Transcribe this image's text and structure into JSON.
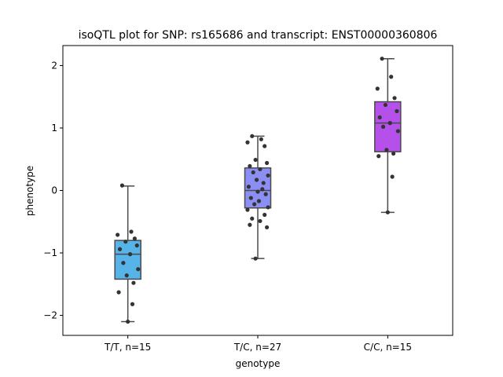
{
  "chart_data": {
    "type": "box",
    "title": "isoQTL plot for SNP: rs165686 and transcript: ENST00000360806",
    "xlabel": "genotype",
    "ylabel": "phenotype",
    "ylim": [
      -2.32,
      2.32
    ],
    "yticks": [
      -2,
      -1,
      0,
      1,
      2
    ],
    "ytick_labels": [
      "−2",
      "−1",
      "0",
      "1",
      "2"
    ],
    "grid": false,
    "categories": [
      "T/T, n=15",
      "T/C, n=27",
      "C/C, n=15"
    ],
    "colors": [
      "#56b4e9",
      "#8b8ef2",
      "#b550ea"
    ],
    "boxes": [
      {
        "category": "T/T, n=15",
        "whisker_low": -2.1,
        "q1": -1.42,
        "median": -1.02,
        "q3": -0.8,
        "whisker_high": 0.07
      },
      {
        "category": "T/C, n=27",
        "whisker_low": -1.09,
        "q1": -0.28,
        "median": 0.0,
        "q3": 0.36,
        "whisker_high": 0.87
      },
      {
        "category": "C/C, n=15",
        "whisker_low": -0.35,
        "q1": 0.62,
        "median": 1.08,
        "q3": 1.42,
        "whisker_high": 2.11
      }
    ],
    "points": [
      [
        0.08,
        -0.66,
        -0.71,
        -0.77,
        -0.82,
        -0.88,
        -0.94,
        -1.02,
        -1.16,
        -1.26,
        -1.36,
        -1.48,
        -1.63,
        -1.82,
        -2.1
      ],
      [
        0.87,
        0.82,
        0.77,
        0.71,
        0.49,
        0.44,
        0.39,
        0.34,
        0.29,
        0.24,
        0.17,
        0.12,
        0.06,
        0.02,
        -0.02,
        -0.06,
        -0.12,
        -0.17,
        -0.22,
        -0.27,
        -0.31,
        -0.39,
        -0.45,
        -0.49,
        -0.55,
        -0.59,
        -1.09
      ],
      [
        2.11,
        1.82,
        1.63,
        1.48,
        1.37,
        1.27,
        1.17,
        1.08,
        1.02,
        0.95,
        0.65,
        0.59,
        0.55,
        0.22,
        -0.35
      ]
    ]
  }
}
